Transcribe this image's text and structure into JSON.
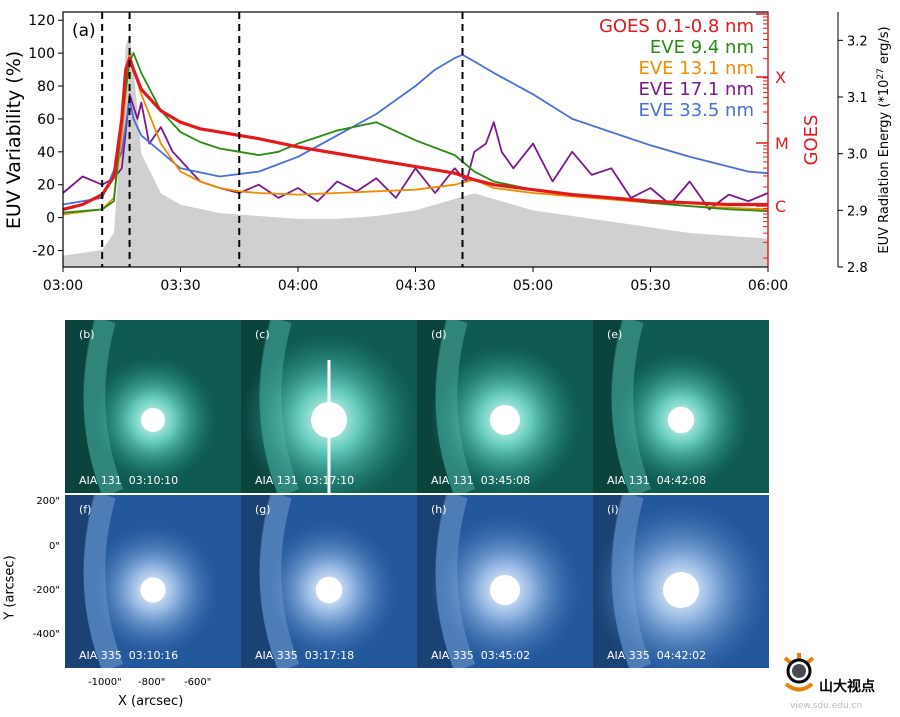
{
  "chart_data": {
    "type": "line",
    "panel_label": "(a)",
    "ylabel": "EUV  Variability (%)",
    "ylabel_right": "EUV Radiation Energy (*10",
    "ylabel_right_sup": "27",
    "ylabel_right_tail": " erg/s)",
    "goes_label": "GOES",
    "xlim": [
      "03:00",
      "06:00"
    ],
    "xlim_minutes": [
      0,
      180
    ],
    "ylim": [
      -30,
      125
    ],
    "ylim_right": [
      2.8,
      3.25
    ],
    "x_ticks": [
      "03:00",
      "03:30",
      "04:00",
      "04:30",
      "05:00",
      "05:30",
      "06:00"
    ],
    "y_ticks": [
      "-20",
      "0",
      "20",
      "40",
      "60",
      "80",
      "100",
      "120"
    ],
    "y_ticks_right": [
      "2.8",
      "2.9",
      "3.0",
      "3.1",
      "3.2"
    ],
    "goes_classes": [
      "X",
      "M",
      "C"
    ],
    "dashed_lines_minutes": [
      10,
      17,
      45,
      102
    ],
    "legend": [
      "GOES 0.1-0.8 nm",
      "EVE 9.4  nm",
      "EVE 13.1 nm",
      "EVE 17.1 nm",
      "EVE 33.5 nm"
    ],
    "series": [
      {
        "name": "GOES 0.1-0.8 nm",
        "color": "#e31a1c",
        "x": [
          0,
          5,
          10,
          13,
          15,
          16,
          17,
          18,
          20,
          25,
          30,
          35,
          40,
          45,
          50,
          60,
          70,
          80,
          90,
          100,
          105,
          110,
          120,
          130,
          140,
          150,
          160,
          170,
          180
        ],
        "y": [
          5,
          8,
          14,
          25,
          60,
          90,
          97,
          90,
          78,
          65,
          58,
          54,
          52,
          50,
          48,
          43,
          39,
          35,
          31,
          27,
          23,
          20,
          17,
          14,
          12,
          10,
          9,
          8,
          8
        ]
      },
      {
        "name": "EVE 9.4  nm",
        "color": "#2a8a14",
        "x": [
          0,
          10,
          13,
          15,
          17,
          18,
          20,
          25,
          30,
          35,
          40,
          45,
          50,
          55,
          60,
          70,
          80,
          90,
          100,
          105,
          110,
          120,
          130,
          140,
          150,
          160,
          170,
          180
        ],
        "y": [
          3,
          5,
          10,
          60,
          95,
          100,
          88,
          65,
          52,
          46,
          42,
          40,
          38,
          40,
          45,
          53,
          58,
          47,
          38,
          28,
          22,
          17,
          14,
          12,
          9,
          7,
          5,
          4
        ]
      },
      {
        "name": "EVE 13.1 nm",
        "color": "#f08c00",
        "x": [
          0,
          10,
          13,
          15,
          17,
          18,
          20,
          25,
          30,
          35,
          40,
          45,
          50,
          60,
          70,
          80,
          90,
          100,
          105,
          110,
          120,
          130,
          140,
          150,
          160,
          170,
          180
        ],
        "y": [
          2,
          5,
          12,
          50,
          100,
          90,
          75,
          45,
          28,
          22,
          18,
          16,
          15,
          14,
          15,
          16,
          17,
          20,
          23,
          18,
          15,
          13,
          11,
          9,
          7,
          6,
          5
        ]
      },
      {
        "name": "EVE 17.1 nm",
        "color": "#7a1a8c",
        "x": [
          0,
          5,
          10,
          13,
          15,
          16,
          17,
          19,
          20,
          22,
          25,
          28,
          30,
          35,
          40,
          45,
          50,
          55,
          60,
          65,
          70,
          75,
          80,
          85,
          90,
          95,
          100,
          103,
          105,
          108,
          110,
          112,
          115,
          120,
          125,
          130,
          135,
          140,
          145,
          150,
          155,
          160,
          165,
          170,
          175,
          180
        ],
        "y": [
          15,
          25,
          20,
          24,
          30,
          52,
          75,
          60,
          70,
          45,
          55,
          40,
          35,
          22,
          18,
          15,
          20,
          12,
          18,
          10,
          22,
          16,
          24,
          12,
          30,
          15,
          30,
          22,
          40,
          45,
          58,
          40,
          30,
          45,
          22,
          40,
          26,
          30,
          12,
          18,
          8,
          22,
          5,
          14,
          10,
          15
        ]
      },
      {
        "name": "EVE 33.5 nm",
        "color": "#4a6fd8",
        "x": [
          0,
          10,
          15,
          17,
          18,
          20,
          25,
          30,
          40,
          50,
          60,
          70,
          80,
          90,
          95,
          100,
          102,
          105,
          110,
          120,
          130,
          140,
          150,
          160,
          170,
          175,
          180
        ],
        "y": [
          8,
          12,
          40,
          72,
          60,
          50,
          40,
          30,
          25,
          28,
          37,
          50,
          63,
          80,
          90,
          97,
          99,
          95,
          88,
          75,
          60,
          52,
          44,
          37,
          31,
          28,
          27
        ]
      },
      {
        "name": "EUV Radiation Energy",
        "color": "#d0d0d0",
        "x": [
          0,
          10,
          13,
          15,
          16,
          17,
          18,
          20,
          25,
          30,
          40,
          50,
          60,
          70,
          80,
          90,
          100,
          105,
          110,
          120,
          130,
          140,
          150,
          160,
          170,
          180
        ],
        "y": [
          2.82,
          2.83,
          2.86,
          3.05,
          3.19,
          3.21,
          3.15,
          3.0,
          2.93,
          2.91,
          2.895,
          2.89,
          2.885,
          2.885,
          2.89,
          2.9,
          2.92,
          2.93,
          2.92,
          2.9,
          2.89,
          2.88,
          2.87,
          2.86,
          2.855,
          2.85
        ]
      }
    ]
  },
  "panels": [
    {
      "letter": "(b)",
      "caption": "AIA 131  03:10:10",
      "channel": "131",
      "bright": 0.5
    },
    {
      "letter": "(c)",
      "caption": "AIA 131  03:17:10",
      "channel": "131",
      "bright": 1.0
    },
    {
      "letter": "(d)",
      "caption": "AIA 131  03:45:08",
      "channel": "131",
      "bright": 0.75
    },
    {
      "letter": "(e)",
      "caption": "AIA 131  04:42:08",
      "channel": "131",
      "bright": 0.6
    },
    {
      "letter": "(f)",
      "caption": "AIA 335  03:10:16",
      "channel": "335",
      "bright": 0.55
    },
    {
      "letter": "(g)",
      "caption": "AIA 335  03:17:18",
      "channel": "335",
      "bright": 0.6
    },
    {
      "letter": "(h)",
      "caption": "AIA 335  03:45:02",
      "channel": "335",
      "bright": 0.75
    },
    {
      "letter": "(i)",
      "caption": "AIA 335  04:42:02",
      "channel": "335",
      "bright": 1.0
    }
  ],
  "image_axes": {
    "ylabel": "Y (arcsec)",
    "xlabel": "X (arcsec)",
    "y_ticks": [
      "200\"",
      "0\"",
      "-200\"",
      "-400\""
    ],
    "x_ticks": [
      "-1000\"",
      "-800\"",
      "-600\""
    ]
  },
  "colors": {
    "aia131": "#0f5a52",
    "aia335": "#24589c"
  },
  "watermark": {
    "text": "山大视点",
    "url": "view.sdu.edu.cn"
  }
}
